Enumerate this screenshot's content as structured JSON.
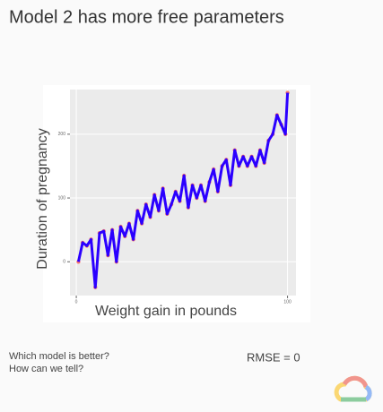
{
  "slide": {
    "title": "Model 2 has more free parameters",
    "question": [
      "Which model is better?",
      "How can we tell?"
    ],
    "metric": "RMSE = 0"
  },
  "chart_data": {
    "type": "line",
    "x_label": "Weight gain in pounds",
    "y_label": "Duration of pregnancy",
    "x": [
      1,
      3,
      5,
      7,
      9,
      11,
      13,
      15,
      17,
      19,
      21,
      23,
      25,
      27,
      29,
      31,
      33,
      35,
      37,
      39,
      41,
      43,
      45,
      47,
      49,
      51,
      53,
      55,
      57,
      59,
      61,
      63,
      65,
      67,
      69,
      71,
      73,
      75,
      77,
      79,
      81,
      83,
      85,
      87,
      89,
      91,
      93,
      95,
      97,
      99,
      100
    ],
    "series": [
      {
        "name": "Model 2",
        "color": "#2b00ff",
        "marker_color": "#f8766d",
        "values": [
          0,
          30,
          25,
          35,
          -40,
          45,
          48,
          10,
          50,
          0,
          55,
          40,
          60,
          35,
          80,
          60,
          90,
          70,
          105,
          80,
          115,
          75,
          90,
          110,
          95,
          135,
          85,
          120,
          100,
          120,
          95,
          125,
          145,
          110,
          150,
          160,
          120,
          175,
          150,
          165,
          150,
          165,
          150,
          175,
          155,
          190,
          200,
          230,
          215,
          200,
          265
        ]
      }
    ],
    "xlim": [
      -3,
      104
    ],
    "ylim": [
      -53,
      270
    ],
    "xticks": [
      0,
      100
    ],
    "yticks": [
      0,
      100,
      200
    ],
    "grid": true
  }
}
